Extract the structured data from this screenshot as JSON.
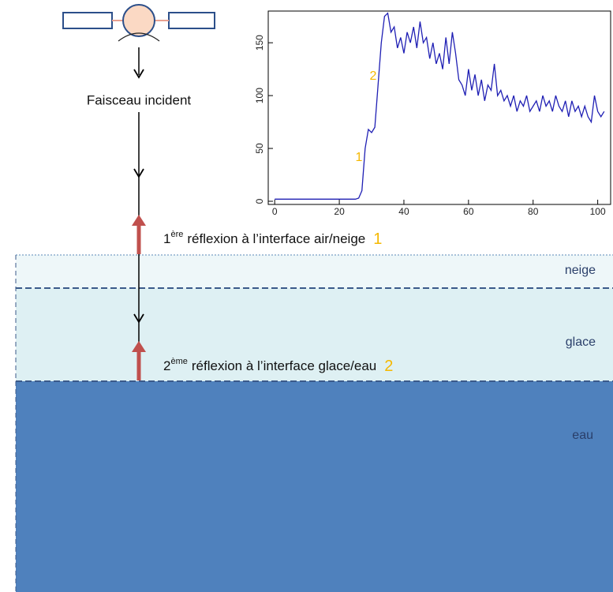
{
  "beam_label": "Faisceau incident",
  "reflections": [
    {
      "ordinal": "1",
      "suffix": "ère",
      "text": "réflexion à l’interface air/neige",
      "marker": "1"
    },
    {
      "ordinal": "2",
      "suffix": "ème",
      "text": "réflexion à l’interface glace/eau",
      "marker": "2"
    }
  ],
  "layers": {
    "snow": "neige",
    "ice": "glace",
    "water": "eau"
  },
  "waveform": {
    "type": "line",
    "color": "#1f1fb4",
    "x": [
      0,
      10,
      20,
      25,
      26,
      27,
      28,
      29,
      30,
      31,
      32,
      33,
      34,
      35,
      36,
      37,
      38,
      39,
      40,
      41,
      42,
      43,
      44,
      45,
      46,
      47,
      48,
      49,
      50,
      51,
      52,
      53,
      54,
      55,
      56,
      57,
      58,
      59,
      60,
      61,
      62,
      63,
      64,
      65,
      66,
      67,
      68,
      69,
      70,
      71,
      72,
      73,
      74,
      75,
      76,
      77,
      78,
      79,
      80,
      81,
      82,
      83,
      84,
      85,
      86,
      87,
      88,
      89,
      90,
      91,
      92,
      93,
      94,
      95,
      96,
      97,
      98,
      99,
      100,
      101,
      102
    ],
    "values": [
      2,
      2,
      2,
      2,
      3,
      10,
      50,
      68,
      65,
      70,
      110,
      150,
      175,
      178,
      160,
      165,
      145,
      155,
      140,
      160,
      150,
      165,
      145,
      170,
      150,
      155,
      135,
      150,
      130,
      140,
      125,
      155,
      130,
      160,
      140,
      115,
      110,
      100,
      125,
      105,
      120,
      100,
      115,
      95,
      110,
      105,
      130,
      100,
      105,
      95,
      100,
      90,
      100,
      85,
      95,
      90,
      100,
      85,
      90,
      95,
      85,
      100,
      90,
      95,
      85,
      100,
      90,
      85,
      95,
      80,
      95,
      85,
      90,
      80,
      90,
      80,
      75,
      100,
      85,
      80,
      85
    ],
    "xlim": [
      -2,
      104
    ],
    "ylim": [
      -3,
      180
    ],
    "xticks": [
      0,
      20,
      40,
      60,
      80,
      100
    ],
    "yticks": [
      0,
      50,
      100,
      150
    ],
    "annotations": [
      "1",
      "2"
    ]
  }
}
